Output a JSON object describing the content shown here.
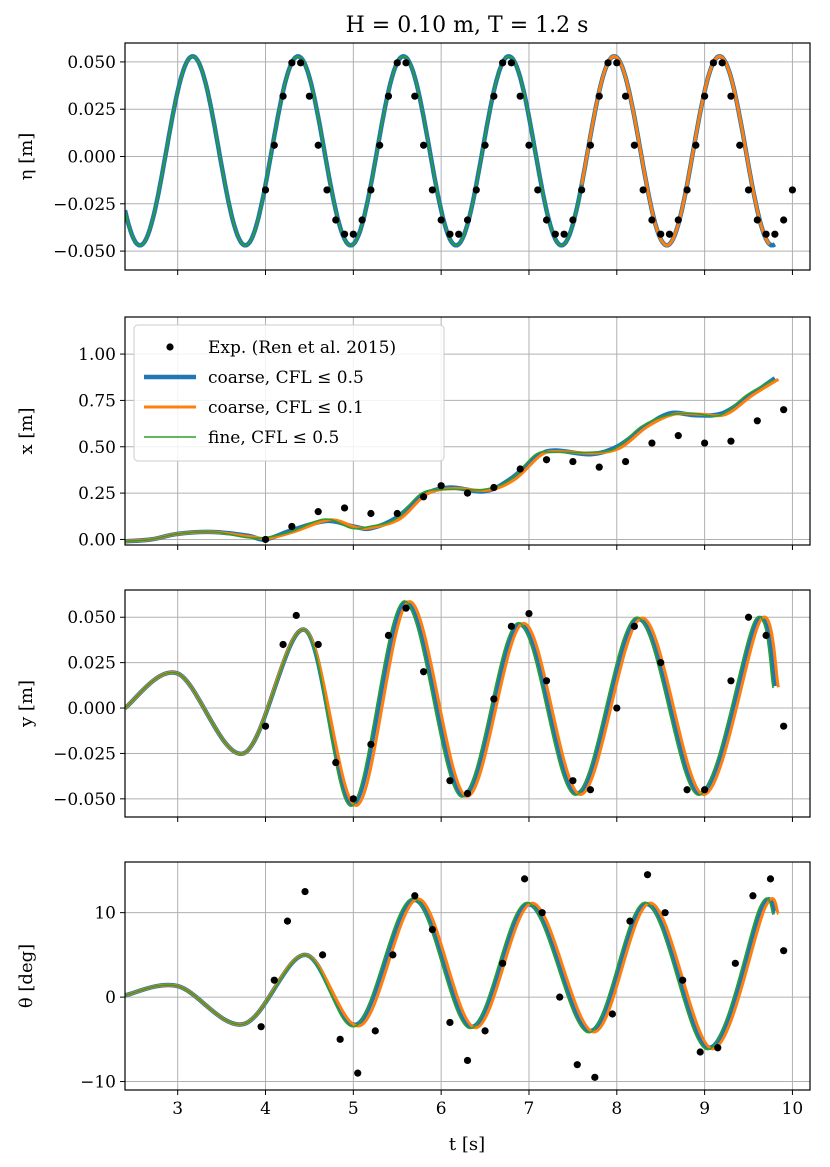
{
  "colors": {
    "exp": "#000000",
    "coarse05": "#1f77b4",
    "coarse01": "#ff7f0e",
    "fine05": "#2ca02c",
    "grid": "#b0b0b0"
  },
  "figure": {
    "title": "H = 0.10 m, T = 1.2 s",
    "xlabel": "t [s]",
    "xlim": [
      2.4,
      10.2
    ],
    "xticks": [
      3,
      4,
      5,
      6,
      7,
      8,
      9,
      10
    ],
    "legend": {
      "location": "upper-left of second panel",
      "entries": [
        {
          "label": "Exp. (Ren et al. 2015)",
          "style": "marker"
        },
        {
          "label": "coarse, CFL ≤ 0.5",
          "style": "thick-line"
        },
        {
          "label": "coarse, CFL ≤ 0.1",
          "style": "medium-line"
        },
        {
          "label": "fine, CFL ≤ 0.5",
          "style": "thin-line"
        }
      ]
    }
  },
  "chart_data": [
    {
      "type": "line",
      "id": "eta",
      "ylabel": "η [m]",
      "ylim": [
        -0.06,
        0.06
      ],
      "yticks": [
        -0.05,
        -0.025,
        0.0,
        0.025,
        0.05
      ],
      "ytick_labels": [
        "−0.050",
        "−0.025",
        "0.000",
        "0.025",
        "0.050"
      ],
      "model": {
        "kind": "wave",
        "amp": 0.05,
        "offset": 0.003,
        "t0": 3.17,
        "period": 1.2,
        "start": 2.4,
        "end": 9.8
      },
      "series": [
        {
          "name": "coarse, CFL ≤ 0.5",
          "t_start": 2.4,
          "t_end": 9.8
        },
        {
          "name": "coarse, CFL ≤ 0.1",
          "t_start": 7.6,
          "t_end": 9.75
        },
        {
          "name": "fine, CFL ≤ 0.5",
          "t_start": 2.4,
          "t_end": 7.6
        }
      ],
      "exp": {
        "t_start": 4.0,
        "t_end": 10.0,
        "step": 0.1,
        "amp": 0.047,
        "offset": 0.005,
        "t0": 3.15,
        "period": 1.2,
        "skew": 0.25
      }
    },
    {
      "type": "line",
      "id": "x",
      "ylabel": "x [m]",
      "ylim": [
        -0.03,
        1.2
      ],
      "yticks": [
        0.0,
        0.25,
        0.5,
        0.75,
        1.0
      ],
      "ytick_labels": [
        "0.00",
        "0.25",
        "0.50",
        "0.75",
        "1.00"
      ],
      "sim_points": [
        [
          2.4,
          -0.01
        ],
        [
          2.7,
          0.0
        ],
        [
          3.0,
          0.03
        ],
        [
          3.4,
          0.04
        ],
        [
          3.8,
          0.02
        ],
        [
          4.0,
          0.0
        ],
        [
          4.3,
          0.05
        ],
        [
          4.7,
          0.1
        ],
        [
          5.0,
          0.07
        ],
        [
          5.2,
          0.06
        ],
        [
          5.5,
          0.12
        ],
        [
          5.8,
          0.24
        ],
        [
          6.1,
          0.28
        ],
        [
          6.5,
          0.26
        ],
        [
          6.8,
          0.33
        ],
        [
          7.1,
          0.45
        ],
        [
          7.3,
          0.48
        ],
        [
          7.7,
          0.46
        ],
        [
          8.0,
          0.5
        ],
        [
          8.3,
          0.6
        ],
        [
          8.6,
          0.68
        ],
        [
          8.9,
          0.67
        ],
        [
          9.2,
          0.68
        ],
        [
          9.5,
          0.77
        ],
        [
          9.8,
          0.87
        ]
      ],
      "exp_points": [
        [
          4.0,
          0.0
        ],
        [
          4.3,
          0.07
        ],
        [
          4.6,
          0.15
        ],
        [
          4.9,
          0.17
        ],
        [
          5.2,
          0.14
        ],
        [
          5.5,
          0.14
        ],
        [
          5.8,
          0.23
        ],
        [
          6.0,
          0.29
        ],
        [
          6.3,
          0.25
        ],
        [
          6.6,
          0.28
        ],
        [
          6.9,
          0.38
        ],
        [
          7.2,
          0.43
        ],
        [
          7.5,
          0.42
        ],
        [
          7.8,
          0.39
        ],
        [
          8.1,
          0.42
        ],
        [
          8.4,
          0.52
        ],
        [
          8.7,
          0.56
        ],
        [
          9.0,
          0.52
        ],
        [
          9.3,
          0.53
        ],
        [
          9.6,
          0.64
        ],
        [
          9.9,
          0.7
        ]
      ]
    },
    {
      "type": "line",
      "id": "y",
      "ylabel": "y [m]",
      "ylim": [
        -0.06,
        0.065
      ],
      "yticks": [
        -0.05,
        -0.025,
        0.0,
        0.025,
        0.05
      ],
      "ytick_labels": [
        "−0.050",
        "−0.025",
        "0.000",
        "0.025",
        "0.050"
      ],
      "sim_points": [
        [
          2.4,
          0.0
        ],
        [
          3.0,
          0.019
        ],
        [
          3.75,
          -0.025
        ],
        [
          4.45,
          0.043
        ],
        [
          5.0,
          -0.053
        ],
        [
          5.6,
          0.058
        ],
        [
          6.25,
          -0.048
        ],
        [
          6.9,
          0.046
        ],
        [
          7.55,
          -0.047
        ],
        [
          8.25,
          0.049
        ],
        [
          8.95,
          -0.047
        ],
        [
          9.6,
          0.048
        ],
        [
          9.8,
          0.012
        ]
      ],
      "exp_points": [
        [
          4.0,
          -0.01
        ],
        [
          4.2,
          0.035
        ],
        [
          4.35,
          0.051
        ],
        [
          4.6,
          0.035
        ],
        [
          4.8,
          -0.03
        ],
        [
          5.0,
          -0.05
        ],
        [
          5.2,
          -0.02
        ],
        [
          5.4,
          0.04
        ],
        [
          5.6,
          0.055
        ],
        [
          5.8,
          0.02
        ],
        [
          6.1,
          -0.04
        ],
        [
          6.3,
          -0.047
        ],
        [
          6.6,
          0.005
        ],
        [
          6.8,
          0.045
        ],
        [
          7.0,
          0.052
        ],
        [
          7.2,
          0.015
        ],
        [
          7.5,
          -0.04
        ],
        [
          7.7,
          -0.045
        ],
        [
          8.0,
          0.0
        ],
        [
          8.2,
          0.045
        ],
        [
          8.5,
          0.025
        ],
        [
          8.8,
          -0.045
        ],
        [
          9.0,
          -0.045
        ],
        [
          9.3,
          0.015
        ],
        [
          9.5,
          0.05
        ],
        [
          9.7,
          0.04
        ],
        [
          9.9,
          -0.01
        ]
      ]
    },
    {
      "type": "line",
      "id": "theta",
      "ylabel": "θ [deg]",
      "ylim": [
        -11,
        16
      ],
      "yticks": [
        -10,
        0,
        10
      ],
      "ytick_labels": [
        "−10",
        "0",
        "10"
      ],
      "sim_points": [
        [
          2.4,
          0.2
        ],
        [
          3.0,
          1.3
        ],
        [
          3.75,
          -3.2
        ],
        [
          4.45,
          5.0
        ],
        [
          5.05,
          -3.2
        ],
        [
          5.7,
          11.5
        ],
        [
          6.35,
          -3.5
        ],
        [
          7.0,
          11.0
        ],
        [
          7.7,
          -4.0
        ],
        [
          8.35,
          11.0
        ],
        [
          9.05,
          -6.0
        ],
        [
          9.65,
          10.5
        ],
        [
          9.8,
          10.0
        ]
      ],
      "exp_points": [
        [
          3.95,
          -3.5
        ],
        [
          4.1,
          2.0
        ],
        [
          4.25,
          9.0
        ],
        [
          4.45,
          12.5
        ],
        [
          4.65,
          5.0
        ],
        [
          4.85,
          -5.0
        ],
        [
          5.05,
          -9.0
        ],
        [
          5.25,
          -4.0
        ],
        [
          5.45,
          5.0
        ],
        [
          5.7,
          12.0
        ],
        [
          5.9,
          8.0
        ],
        [
          6.1,
          -3.0
        ],
        [
          6.3,
          -7.5
        ],
        [
          6.5,
          -4.0
        ],
        [
          6.7,
          4.0
        ],
        [
          6.95,
          14.0
        ],
        [
          7.15,
          10.0
        ],
        [
          7.35,
          0.0
        ],
        [
          7.55,
          -8.0
        ],
        [
          7.75,
          -9.5
        ],
        [
          7.95,
          -2.0
        ],
        [
          8.15,
          9.0
        ],
        [
          8.35,
          14.5
        ],
        [
          8.55,
          10.0
        ],
        [
          8.75,
          2.0
        ],
        [
          8.95,
          -6.5
        ],
        [
          9.15,
          -6.0
        ],
        [
          9.35,
          4.0
        ],
        [
          9.55,
          12.0
        ],
        [
          9.75,
          14.0
        ],
        [
          9.9,
          5.5
        ]
      ]
    }
  ]
}
